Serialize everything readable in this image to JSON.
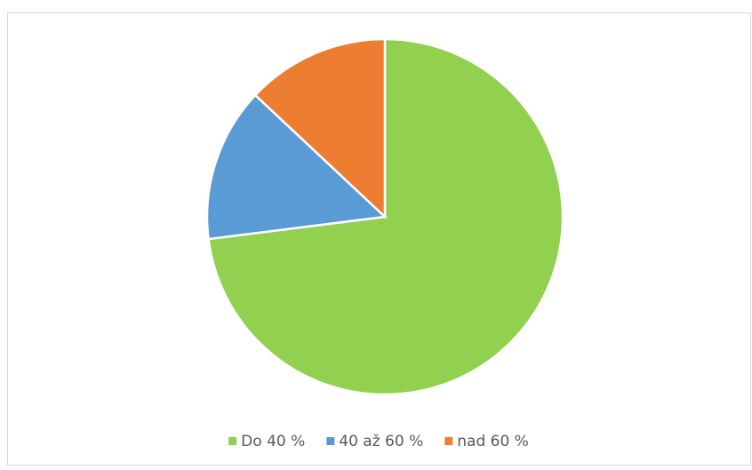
{
  "chart_data": {
    "type": "pie",
    "categories": [
      "Do 40 %",
      "40 až 60 %",
      "nad 60 %"
    ],
    "values": [
      73,
      14,
      13
    ],
    "colors": [
      "#92d050",
      "#5b9bd5",
      "#ed7d31"
    ],
    "legend": "bottom"
  }
}
